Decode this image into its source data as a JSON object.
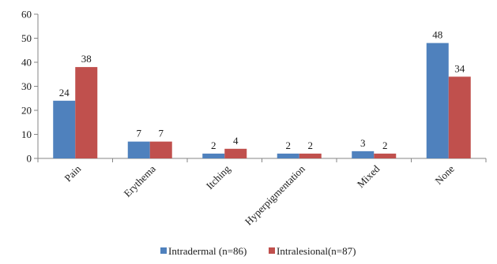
{
  "chart_data": {
    "type": "bar",
    "categories": [
      "Pain",
      "Erythema",
      "Itching",
      "Hyperpigmentation",
      "Mixed",
      "None"
    ],
    "series": [
      {
        "name": "Intradermal (n=86)",
        "values": [
          24,
          7,
          2,
          2,
          3,
          48
        ],
        "color": "#4f81bd"
      },
      {
        "name": "Intralesional(n=87)",
        "values": [
          38,
          7,
          4,
          2,
          2,
          34
        ],
        "color": "#c0504d"
      }
    ],
    "yticks": [
      "0",
      "10",
      "20",
      "30",
      "40",
      "50",
      "60"
    ],
    "ylim": [
      0,
      60
    ],
    "grid": false,
    "legend_position": "bottom",
    "data_labels": true
  }
}
